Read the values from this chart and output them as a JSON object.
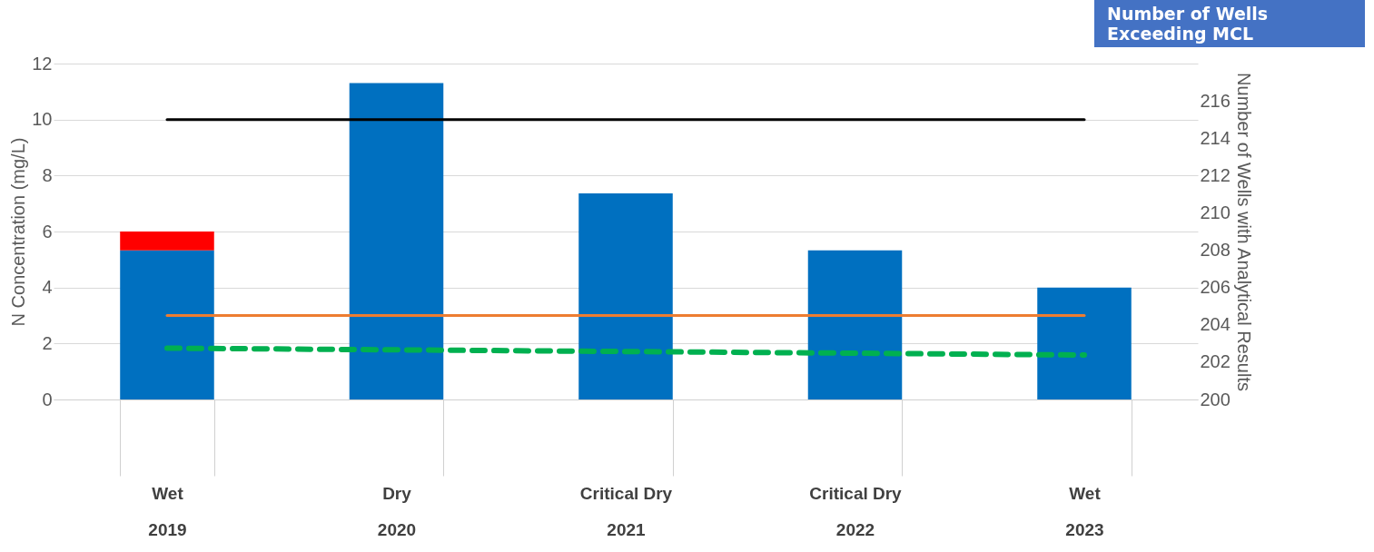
{
  "chart_data": {
    "type": "bar",
    "stacked": true,
    "categories": [
      "Wet\n2019",
      "Dry\n2020",
      "Critical Dry\n2021",
      "Critical Dry\n2022",
      "Wet\n2023"
    ],
    "series": [
      {
        "color": "#0070c0",
        "values": [
          5.33,
          11.3,
          7.36,
          5.33,
          4.0
        ]
      },
      {
        "color": "#ff0000",
        "values": [
          0.67,
          null,
          null,
          null,
          null
        ]
      },
      {
        "type": "line",
        "color": "#000000",
        "values": [
          10,
          10,
          10,
          10,
          10
        ]
      },
      {
        "type": "line",
        "color": "#ed7d31",
        "values": [
          3,
          3,
          3,
          3,
          3
        ]
      },
      {
        "type": "line",
        "color": "#00b050",
        "line_style": "dashed",
        "axis": "y2",
        "values": [
          202.75,
          202.66,
          202.57,
          202.48,
          202.38
        ]
      }
    ],
    "ylabel": "N Concentration (mg/L)",
    "y2label": "Number of Wells with Analytical Results",
    "ylim": [
      0,
      12
    ],
    "yticks": [
      0,
      2,
      4,
      6,
      8,
      10,
      12
    ],
    "y2lim": [
      200,
      218
    ],
    "y2ticks": [
      200,
      202,
      204,
      206,
      208,
      210,
      212,
      214,
      216
    ],
    "grid": "y",
    "annotations": [
      "Number of Wells\nExceeding MCL"
    ]
  }
}
